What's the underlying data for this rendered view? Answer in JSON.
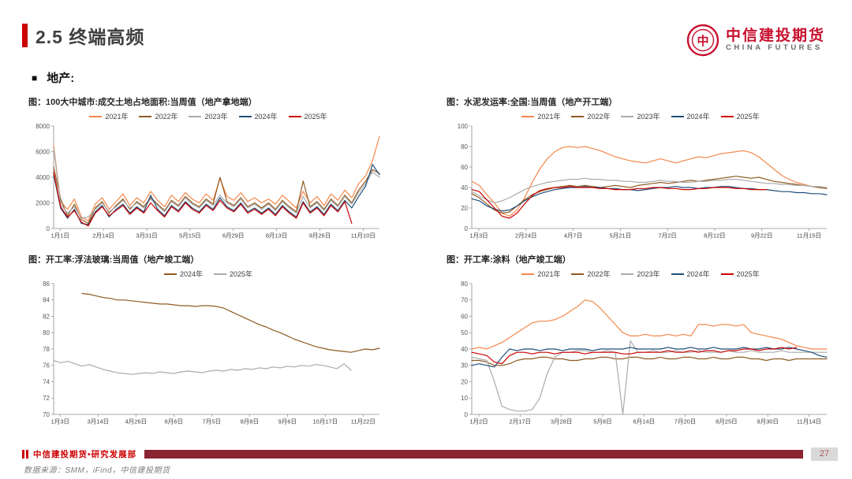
{
  "page": {
    "title": "2.5 终端高频",
    "section_bullet": "■",
    "section": "地产:"
  },
  "logo": {
    "brand_cn": "中信建投期货",
    "brand_en": "CHINA FUTURES",
    "mark_glyph": "中"
  },
  "footer": {
    "dept": "中信建投期货•研究发展部",
    "page_number": "27",
    "source": "数据来源：SMM，iFind，中信建投期货"
  },
  "colors": {
    "accent_red": "#CC0000",
    "logo_red": "#C8102E",
    "footer_bar": "#8A2432",
    "page_badge_bg": "#D9D9D9",
    "page_badge_text": "#B05555",
    "axis_gray": "#8C8C8C",
    "label_gray": "#595959",
    "xlabel_gray": "#404040"
  },
  "chart_data": [
    {
      "type": "line",
      "title": "图：100大中城市:成交土地占地面积:当周值（地产拿地端）",
      "xlabel": "",
      "ylabel": "",
      "ylim": [
        0,
        8000
      ],
      "yticks": [
        0,
        2000,
        4000,
        6000,
        8000
      ],
      "grid": false,
      "legend_position": "top",
      "xtick_labels": [
        "1月1日",
        "2月14日",
        "3月31日",
        "5月15日",
        "6月29日",
        "8月13日",
        "9月26日",
        "11月10日"
      ],
      "series": [
        {
          "name": "2021年",
          "color": "#F4874B",
          "values": [
            6500,
            2100,
            1500,
            2300,
            900,
            600,
            1900,
            2400,
            1500,
            2100,
            2700,
            1800,
            2400,
            2000,
            2900,
            2200,
            1700,
            2600,
            2100,
            2800,
            2300,
            2000,
            2700,
            2200,
            3900,
            2500,
            2200,
            2800,
            2100,
            2400,
            2000,
            2300,
            1900,
            2600,
            2100,
            1600,
            2900,
            2000,
            2500,
            1800,
            2700,
            2200,
            3000,
            2400,
            3500,
            4100,
            5300,
            7200
          ]
        },
        {
          "name": "2022年",
          "color": "#8F5B22",
          "values": [
            4800,
            2300,
            1000,
            1900,
            700,
            400,
            1600,
            2100,
            1200,
            1800,
            2300,
            1500,
            2100,
            1700,
            2400,
            1900,
            1400,
            2200,
            1800,
            2500,
            2000,
            1700,
            2300,
            1900,
            4000,
            2100,
            1800,
            2400,
            1700,
            2000,
            1600,
            2000,
            1500,
            2200,
            1700,
            1300,
            3700,
            1700,
            2100,
            1500,
            2300,
            1800,
            2600,
            2000,
            3000,
            3700,
            4600,
            4300
          ]
        },
        {
          "name": "2023年",
          "color": "#ABABAB",
          "values": [
            6300,
            1900,
            1200,
            1700,
            800,
            900,
            1500,
            2000,
            1300,
            1700,
            2200,
            1600,
            2000,
            1600,
            2300,
            1800,
            1300,
            2100,
            1700,
            2400,
            1900,
            1600,
            2200,
            1800,
            2600,
            2000,
            1700,
            2300,
            1600,
            1900,
            1500,
            1900,
            1400,
            2100,
            1600,
            1200,
            2500,
            1600,
            2000,
            1400,
            2200,
            1700,
            2500,
            1900,
            2800,
            3500,
            4400,
            4000
          ]
        },
        {
          "name": "2024年",
          "color": "#1F4E79",
          "values": [
            4200,
            1600,
            800,
            1500,
            400,
            300,
            1300,
            1800,
            900,
            1500,
            1900,
            1200,
            1700,
            1300,
            2600,
            1500,
            1000,
            1800,
            1400,
            2100,
            1600,
            1300,
            1900,
            1500,
            2400,
            1700,
            1400,
            2000,
            1300,
            1600,
            1200,
            1600,
            1100,
            1800,
            1300,
            900,
            2100,
            1300,
            1700,
            1100,
            1900,
            1400,
            2200,
            1600,
            2500,
            3300,
            5000,
            4200
          ]
        },
        {
          "name": "2025年",
          "color": "#CC0000",
          "values": [
            4400,
            1700,
            900,
            1400,
            500,
            200,
            1200,
            1700,
            1000,
            1400,
            1800,
            1100,
            1600,
            1200,
            2000,
            1400,
            900,
            1700,
            1300,
            2000,
            1500,
            1200,
            1800,
            1400,
            2200,
            1600,
            1300,
            1900,
            1200,
            1500,
            1100,
            1500,
            1000,
            1700,
            1200,
            800,
            2000,
            1200,
            1600,
            1000,
            1800,
            1300,
            2100,
            400,
            null,
            null,
            null,
            null
          ]
        }
      ]
    },
    {
      "type": "line",
      "title": "图：水泥发运率:全国:当周值（地产开工端）",
      "xlabel": "",
      "ylabel": "",
      "ylim": [
        0,
        100
      ],
      "yticks": [
        0,
        20,
        40,
        60,
        80,
        100
      ],
      "grid": false,
      "legend_position": "top",
      "xtick_labels": [
        "1月3日",
        "2月24日",
        "4月7日",
        "5月21日",
        "7月2日",
        "8月12日",
        "9月22日",
        "11月15日"
      ],
      "series": [
        {
          "name": "2021年",
          "color": "#F4874B",
          "values": [
            46,
            42,
            33,
            25,
            15,
            12,
            18,
            30,
            45,
            58,
            68,
            75,
            79,
            80,
            79,
            80,
            78,
            76,
            73,
            70,
            68,
            66,
            65,
            64,
            66,
            68,
            66,
            64,
            66,
            68,
            70,
            69,
            71,
            73,
            74,
            75,
            76,
            74,
            70,
            64,
            58,
            52,
            48,
            45,
            43,
            41,
            40,
            39
          ]
        },
        {
          "name": "2022年",
          "color": "#8F5B22",
          "values": [
            34,
            30,
            24,
            18,
            15,
            16,
            22,
            28,
            33,
            36,
            38,
            40,
            41,
            42,
            41,
            42,
            41,
            40,
            41,
            42,
            41,
            40,
            42,
            43,
            44,
            45,
            44,
            45,
            46,
            47,
            46,
            47,
            48,
            49,
            50,
            51,
            50,
            49,
            50,
            48,
            46,
            45,
            44,
            43,
            42,
            41,
            40,
            39
          ]
        },
        {
          "name": "2023年",
          "color": "#ABABAB",
          "values": [
            36,
            32,
            28,
            25,
            27,
            30,
            34,
            38,
            41,
            43,
            45,
            46,
            47,
            48,
            48,
            49,
            48,
            48,
            47,
            47,
            46,
            46,
            45,
            45,
            46,
            47,
            46,
            46,
            45,
            45,
            46,
            46,
            47,
            47,
            48,
            48,
            47,
            46,
            45,
            44,
            44,
            43,
            43,
            42,
            42,
            41,
            41,
            40
          ]
        },
        {
          "name": "2024年",
          "color": "#1F4E79",
          "values": [
            29,
            27,
            22,
            19,
            17,
            18,
            22,
            27,
            31,
            34,
            36,
            38,
            39,
            40,
            40,
            41,
            40,
            40,
            39,
            39,
            38,
            38,
            37,
            38,
            39,
            40,
            40,
            41,
            40,
            40,
            39,
            40,
            40,
            41,
            41,
            40,
            39,
            39,
            38,
            38,
            37,
            36,
            36,
            35,
            35,
            34,
            34,
            33
          ]
        },
        {
          "name": "2025年",
          "color": "#CC0000",
          "values": [
            38,
            36,
            28,
            20,
            12,
            10,
            15,
            24,
            32,
            37,
            39,
            40,
            40,
            41,
            40,
            40,
            40,
            39,
            39,
            38,
            38,
            38,
            39,
            39,
            40,
            40,
            39,
            39,
            38,
            38,
            39,
            39,
            40,
            40,
            40,
            39,
            39,
            38,
            38,
            38,
            null,
            null,
            null,
            null,
            null,
            null,
            null,
            null
          ]
        }
      ]
    },
    {
      "type": "line",
      "title": "图：开工率:浮法玻璃:当周值（地产竣工端）",
      "xlabel": "",
      "ylabel": "",
      "ylim": [
        70,
        86
      ],
      "yticks": [
        70,
        72,
        74,
        76,
        78,
        80,
        82,
        84,
        86
      ],
      "grid": false,
      "legend_position": "top",
      "xtick_labels": [
        "1月3日",
        "3月14日",
        "4月26日",
        "6月6日",
        "7月5日",
        "8月8日",
        "9月6日",
        "10月17日",
        "11月22日"
      ],
      "series": [
        {
          "name": "2024年",
          "color": "#8F5B22",
          "values": [
            null,
            null,
            null,
            null,
            84.8,
            84.7,
            84.5,
            84.3,
            84.2,
            84.0,
            84.0,
            83.9,
            83.8,
            83.7,
            83.6,
            83.5,
            83.5,
            83.4,
            83.3,
            83.3,
            83.2,
            83.3,
            83.3,
            83.2,
            83.0,
            82.6,
            82.2,
            81.8,
            81.4,
            81.0,
            80.7,
            80.3,
            80.0,
            79.6,
            79.2,
            78.9,
            78.6,
            78.3,
            78.1,
            77.9,
            77.8,
            77.7,
            77.6,
            77.8,
            78.0,
            77.9,
            78.1
          ]
        },
        {
          "name": "2025年",
          "color": "#ABABAB",
          "values": [
            76.6,
            76.3,
            76.5,
            76.2,
            75.9,
            76.1,
            75.8,
            75.5,
            75.3,
            75.1,
            75.0,
            74.9,
            75.0,
            75.1,
            75.0,
            75.2,
            75.1,
            75.0,
            75.2,
            75.3,
            75.2,
            75.1,
            75.3,
            75.4,
            75.3,
            75.5,
            75.4,
            75.6,
            75.5,
            75.7,
            75.6,
            75.8,
            75.7,
            75.9,
            75.8,
            76.0,
            75.9,
            76.1,
            76.0,
            75.8,
            75.6,
            76.2,
            75.4,
            null,
            null,
            null,
            null
          ]
        }
      ]
    },
    {
      "type": "line",
      "title": "图：开工率:涂料（地产竣工端）",
      "xlabel": "",
      "ylabel": "",
      "ylim": [
        0,
        80
      ],
      "yticks": [
        0,
        10,
        20,
        30,
        40,
        50,
        60,
        70,
        80
      ],
      "grid": false,
      "legend_position": "top",
      "xtick_labels": [
        "1月2日",
        "2月17日",
        "3月28日",
        "5月8日",
        "6月14日",
        "7月20日",
        "8月25日",
        "9月30日",
        "11月14日"
      ],
      "series": [
        {
          "name": "2021年",
          "color": "#F4874B",
          "values": [
            40,
            41,
            40,
            42,
            44,
            47,
            50,
            53,
            56,
            57,
            57,
            58,
            60,
            63,
            66,
            70,
            69,
            65,
            60,
            55,
            50,
            48,
            48,
            49,
            48,
            48,
            49,
            48,
            49,
            48,
            55,
            55,
            54,
            55,
            55,
            54,
            55,
            50,
            49,
            48,
            47,
            46,
            44,
            42,
            41,
            40,
            40,
            40
          ]
        },
        {
          "name": "2022年",
          "color": "#8F5B22",
          "values": [
            33,
            33,
            32,
            30,
            30,
            31,
            33,
            34,
            34,
            35,
            35,
            34,
            34,
            33,
            33,
            34,
            34,
            35,
            35,
            34,
            34,
            35,
            35,
            34,
            34,
            35,
            34,
            34,
            35,
            35,
            34,
            34,
            35,
            34,
            34,
            35,
            35,
            34,
            34,
            33,
            34,
            34,
            33,
            34,
            34,
            34,
            34,
            34
          ]
        },
        {
          "name": "2023年",
          "color": "#ABABAB",
          "values": [
            35,
            34,
            33,
            20,
            5,
            3,
            2,
            2,
            3,
            10,
            25,
            35,
            38,
            38,
            39,
            39,
            38,
            38,
            39,
            38,
            0,
            45,
            38,
            38,
            39,
            38,
            38,
            39,
            38,
            38,
            39,
            38,
            38,
            38,
            39,
            38,
            38,
            39,
            38,
            38,
            38,
            39,
            38,
            38,
            38,
            38,
            38,
            38
          ]
        },
        {
          "name": "2024年",
          "color": "#1F4E79",
          "values": [
            30,
            31,
            30,
            29,
            35,
            40,
            39,
            40,
            40,
            39,
            40,
            40,
            39,
            40,
            40,
            40,
            39,
            40,
            40,
            40,
            40,
            41,
            40,
            40,
            40,
            40,
            41,
            40,
            40,
            41,
            40,
            40,
            41,
            40,
            40,
            40,
            41,
            40,
            40,
            41,
            40,
            40,
            41,
            40,
            39,
            38,
            36,
            35
          ]
        },
        {
          "name": "2025年",
          "color": "#CC0000",
          "values": [
            38,
            37,
            36,
            32,
            31,
            36,
            38,
            38,
            37,
            38,
            38,
            37,
            38,
            38,
            38,
            37,
            38,
            38,
            38,
            38,
            37,
            37,
            38,
            38,
            38,
            38,
            39,
            38,
            38,
            39,
            38,
            39,
            39,
            38,
            39,
            39,
            40,
            40,
            39,
            40,
            40,
            41,
            40,
            41,
            null,
            null,
            null,
            null
          ]
        }
      ]
    }
  ]
}
